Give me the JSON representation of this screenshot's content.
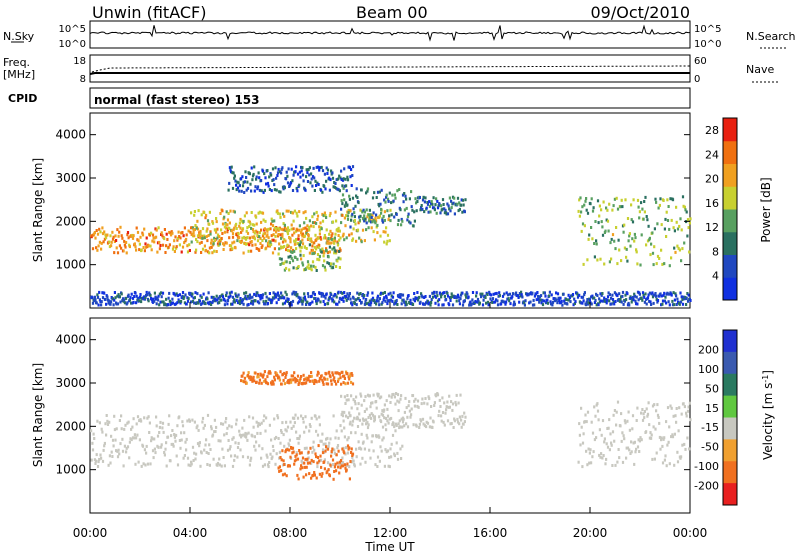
{
  "header": {
    "station": "Unwin (fitACF)",
    "beam": "Beam 00",
    "date": "09/Oct/2010"
  },
  "top_panels": {
    "nsky_label": "N.Sky",
    "nsearch_label": "N.Search",
    "nsky_ticks": [
      "10^5",
      "10^0"
    ],
    "freq_label": "Freq.",
    "freq_unit": "[MHz]",
    "freq_ticks": [
      "18",
      "8"
    ],
    "nave_label": "Nave",
    "nave_ticks": [
      "60",
      "0"
    ],
    "cpid_label": "CPID",
    "cpid_text": "normal (fast stereo) 153"
  },
  "chart_data": [
    {
      "type": "heatmap",
      "name": "power",
      "xlabel": "",
      "ylabel": "Slant Range [km]",
      "x_range_hours": [
        0,
        24
      ],
      "ylim": [
        0,
        4500
      ],
      "yticks": [
        1000,
        2000,
        3000,
        4000
      ],
      "colorbar": {
        "label": "Power [dB]",
        "ticks": [
          4,
          8,
          12,
          16,
          20,
          24,
          28
        ],
        "range": [
          0,
          30
        ],
        "colors": [
          "#1030e0",
          "#2048c0",
          "#2a7060",
          "#58a060",
          "#c8d030",
          "#f0a020",
          "#f07010",
          "#e82010"
        ]
      },
      "echo_regions": [
        {
          "t_start": 0.0,
          "t_end": 10.0,
          "range_start": 1300,
          "range_end": 1900,
          "power": 22
        },
        {
          "t_start": 4.0,
          "t_end": 12.0,
          "range_start": 1500,
          "range_end": 2300,
          "power": 18
        },
        {
          "t_start": 10.0,
          "t_end": 13.0,
          "range_start": 1900,
          "range_end": 2800,
          "power": 10
        },
        {
          "t_start": 13.0,
          "t_end": 15.0,
          "range_start": 2200,
          "range_end": 2600,
          "power": 8
        },
        {
          "t_start": 7.5,
          "t_end": 10.0,
          "range_start": 900,
          "range_end": 1500,
          "power": 14
        },
        {
          "t_start": 5.5,
          "t_end": 10.5,
          "range_start": 2700,
          "range_end": 3300,
          "power": 6
        },
        {
          "t_start": 19.5,
          "t_end": 24.0,
          "range_start": 1000,
          "range_end": 2600,
          "power": 14
        },
        {
          "t_start": 0.0,
          "t_end": 24.0,
          "range_start": 100,
          "range_end": 400,
          "power": 5
        }
      ]
    },
    {
      "type": "heatmap",
      "name": "velocity",
      "xlabel": "Time UT",
      "ylabel": "Slant Range [km]",
      "x_range_hours": [
        0,
        24
      ],
      "ylim": [
        0,
        4500
      ],
      "yticks": [
        1000,
        2000,
        3000,
        4000
      ],
      "xticks": [
        "00:00",
        "04:00",
        "08:00",
        "12:00",
        "16:00",
        "20:00",
        "00:00"
      ],
      "colorbar": {
        "label": "Velocity [m s",
        "label_sup": "-1",
        "label_end": "]",
        "ticks": [
          "200",
          "100",
          "50",
          "15",
          "-15",
          "-50",
          "-100",
          "-200"
        ],
        "colors": [
          "#2030d0",
          "#3a5ab0",
          "#2a7a60",
          "#60c840",
          "#c8c8c0",
          "#f0a030",
          "#f07020",
          "#e82020"
        ]
      },
      "echo_regions": [
        {
          "t_start": 0.0,
          "t_end": 12.5,
          "range_start": 1100,
          "range_end": 2300,
          "velocity": 0
        },
        {
          "t_start": 10.0,
          "t_end": 15.0,
          "range_start": 2000,
          "range_end": 2800,
          "velocity": 0
        },
        {
          "t_start": 7.5,
          "t_end": 10.5,
          "range_start": 800,
          "range_end": 1600,
          "velocity": -80
        },
        {
          "t_start": 6.0,
          "t_end": 10.5,
          "range_start": 3000,
          "range_end": 3300,
          "velocity": -60
        },
        {
          "t_start": 19.5,
          "t_end": 24.0,
          "range_start": 1100,
          "range_end": 2600,
          "velocity": 0
        }
      ]
    }
  ]
}
